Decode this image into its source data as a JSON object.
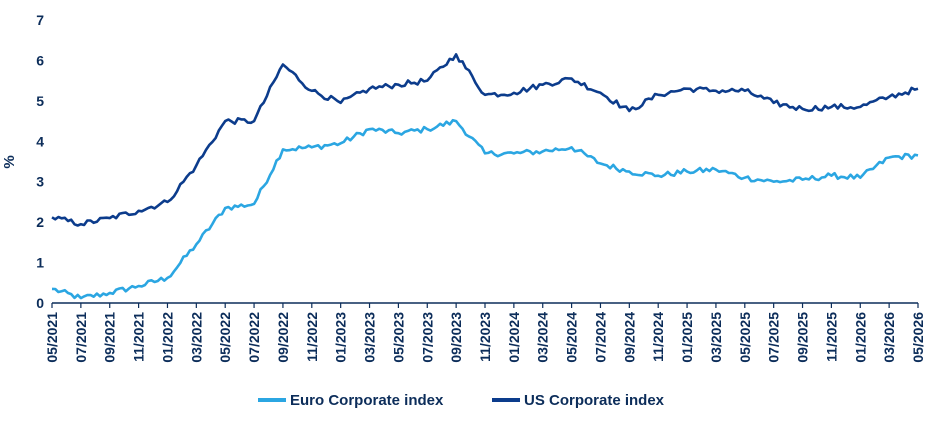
{
  "chart_data": {
    "type": "line",
    "ylabel": "%",
    "xlabel": "",
    "ylim": [
      0,
      7
    ],
    "yticks": [
      "0",
      "1",
      "2",
      "3",
      "4",
      "5",
      "6",
      "7"
    ],
    "x": [
      "05/2021",
      "07/2021",
      "09/2021",
      "11/2021",
      "01/2022",
      "03/2022",
      "05/2022",
      "07/2022",
      "09/2022",
      "11/2022",
      "01/2023",
      "03/2023",
      "05/2023",
      "07/2023",
      "09/2023",
      "11/2023",
      "01/2024",
      "03/2024",
      "05/2024",
      "07/2024",
      "09/2024",
      "11/2024",
      "01/2025",
      "03/2025",
      "05/2025",
      "07/2025",
      "09/2025",
      "11/2025",
      "01/2026",
      "03/2026",
      "05/2026"
    ],
    "grid": false,
    "legend": "bottom",
    "series": [
      {
        "name": "Euro Corporate index",
        "color": "#2ba6e2",
        "values": [
          0.35,
          0.12,
          0.25,
          0.42,
          0.62,
          1.45,
          2.35,
          2.45,
          3.8,
          3.85,
          3.95,
          4.3,
          4.2,
          4.3,
          4.5,
          3.7,
          3.7,
          3.75,
          3.85,
          3.45,
          3.25,
          3.15,
          3.25,
          3.3,
          3.1,
          3.0,
          3.05,
          3.15,
          3.1,
          3.6,
          3.65
        ]
      },
      {
        "name": "US Corporate index",
        "color": "#0c3c8c",
        "values": [
          2.12,
          1.95,
          2.1,
          2.28,
          2.5,
          3.4,
          4.5,
          4.5,
          5.9,
          5.25,
          4.95,
          5.3,
          5.4,
          5.5,
          6.15,
          5.15,
          5.2,
          5.4,
          5.55,
          5.2,
          4.75,
          5.15,
          5.3,
          5.25,
          5.25,
          4.95,
          4.8,
          4.85,
          4.85,
          5.1,
          5.3
        ]
      }
    ]
  }
}
